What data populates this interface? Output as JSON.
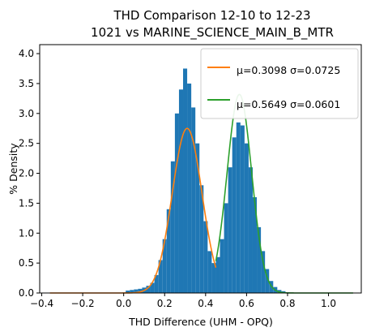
{
  "chart_data": {
    "type": "histogram",
    "title_lines": [
      "THD Comparison 12-10 to 12-23",
      "1021 vs MARINE_SCIENCE_MAIN_B_MTR"
    ],
    "xlabel": "THD Difference  (UHM - OPQ)",
    "ylabel": "% Density",
    "xlim": [
      -0.41,
      1.16
    ],
    "ylim": [
      0,
      4.15
    ],
    "xticks": [
      -0.4,
      -0.2,
      0.0,
      0.2,
      0.4,
      0.6,
      0.8,
      1.0
    ],
    "xtick_labels": [
      "−0.4",
      "−0.2",
      "0.0",
      "0.2",
      "0.4",
      "0.6",
      "0.8",
      "1.0"
    ],
    "yticks": [
      0.0,
      0.5,
      1.0,
      1.5,
      2.0,
      2.5,
      3.0,
      3.5,
      4.0
    ],
    "ytick_labels": [
      "0.0",
      "0.5",
      "1.0",
      "1.5",
      "2.0",
      "2.5",
      "3.0",
      "3.5",
      "4.0"
    ],
    "histogram": {
      "color": "#1f77b4",
      "bins": [
        [
          0.02,
          0.04
        ],
        [
          0.04,
          0.05
        ],
        [
          0.06,
          0.06
        ],
        [
          0.08,
          0.07
        ],
        [
          0.1,
          0.09
        ],
        [
          0.12,
          0.12
        ],
        [
          0.14,
          0.17
        ],
        [
          0.16,
          0.3
        ],
        [
          0.18,
          0.55
        ],
        [
          0.2,
          0.9
        ],
        [
          0.22,
          1.4
        ],
        [
          0.24,
          2.2
        ],
        [
          0.26,
          3.0
        ],
        [
          0.28,
          3.4
        ],
        [
          0.3,
          3.75
        ],
        [
          0.32,
          3.5
        ],
        [
          0.34,
          3.1
        ],
        [
          0.36,
          2.5
        ],
        [
          0.38,
          1.8
        ],
        [
          0.4,
          1.2
        ],
        [
          0.42,
          0.7
        ],
        [
          0.44,
          0.5
        ],
        [
          0.46,
          0.6
        ],
        [
          0.48,
          0.9
        ],
        [
          0.5,
          1.5
        ],
        [
          0.52,
          2.1
        ],
        [
          0.54,
          2.6
        ],
        [
          0.56,
          2.85
        ],
        [
          0.58,
          2.8
        ],
        [
          0.6,
          2.5
        ],
        [
          0.62,
          2.1
        ],
        [
          0.64,
          1.6
        ],
        [
          0.66,
          1.1
        ],
        [
          0.68,
          0.7
        ],
        [
          0.7,
          0.4
        ],
        [
          0.72,
          0.2
        ],
        [
          0.74,
          0.1
        ],
        [
          0.76,
          0.05
        ],
        [
          0.78,
          0.03
        ],
        [
          0.8,
          0.01
        ]
      ]
    },
    "series": [
      {
        "type": "normal-fit",
        "color": "#ff7f0e",
        "mu": 0.3098,
        "sigma": 0.0725,
        "x_range": [
          -0.36,
          0.45
        ]
      },
      {
        "type": "normal-fit",
        "color": "#2ca02c",
        "mu": 0.5649,
        "sigma": 0.0601,
        "x_range": [
          0.45,
          1.12
        ]
      }
    ],
    "legend": {
      "position": "top-right",
      "entries": [
        {
          "label": "μ=0.3098 σ=0.0725",
          "color": "#ff7f0e"
        },
        {
          "label": "μ=0.5649 σ=0.0601",
          "color": "#2ca02c"
        }
      ]
    }
  }
}
